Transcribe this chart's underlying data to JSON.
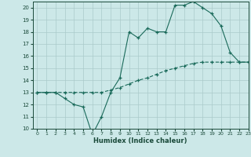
{
  "title": "",
  "xlabel": "Humidex (Indice chaleur)",
  "ylabel": "",
  "background_color": "#cce8e8",
  "grid_color": "#aacaca",
  "line_color": "#1a6a5a",
  "xlim": [
    -0.5,
    23
  ],
  "ylim": [
    10,
    20.5
  ],
  "yticks": [
    10,
    11,
    12,
    13,
    14,
    15,
    16,
    17,
    18,
    19,
    20
  ],
  "xticks": [
    0,
    1,
    2,
    3,
    4,
    5,
    6,
    7,
    8,
    9,
    10,
    11,
    12,
    13,
    14,
    15,
    16,
    17,
    18,
    19,
    20,
    21,
    22,
    23
  ],
  "line1_x": [
    0,
    1,
    2,
    3,
    4,
    5,
    6,
    7,
    8,
    9,
    10,
    11,
    12,
    13,
    14,
    15,
    16,
    17,
    18,
    19,
    20,
    21,
    22,
    23
  ],
  "line1_y": [
    13,
    13,
    13,
    13,
    13,
    13,
    13,
    13,
    13.2,
    13.4,
    13.7,
    14,
    14.2,
    14.5,
    14.8,
    15.0,
    15.2,
    15.4,
    15.5,
    15.5,
    15.5,
    15.5,
    15.5,
    15.5
  ],
  "line2_x": [
    0,
    1,
    2,
    3,
    4,
    5,
    6,
    7,
    8,
    9,
    10,
    11,
    12,
    13,
    14,
    15,
    16,
    17,
    18,
    19,
    20,
    21,
    22,
    23
  ],
  "line2_y": [
    13,
    13,
    13,
    12.5,
    12.0,
    11.8,
    9.5,
    11.0,
    13.0,
    14.2,
    18.0,
    17.5,
    18.3,
    18.0,
    18.0,
    20.2,
    20.2,
    20.5,
    20.0,
    19.5,
    18.5,
    16.3,
    15.5,
    15.5
  ]
}
